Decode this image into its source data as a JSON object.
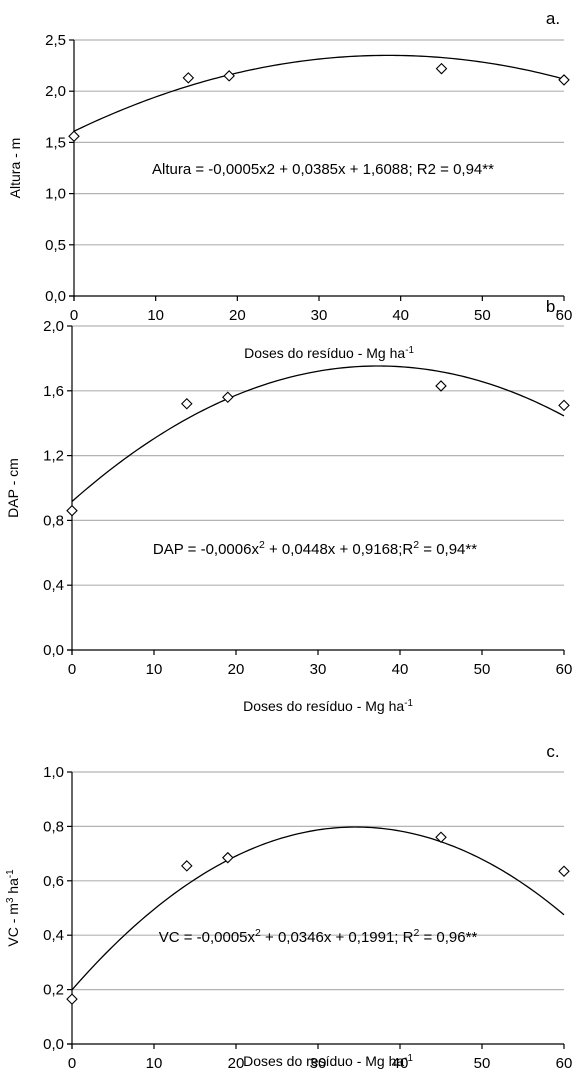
{
  "chart_data": [
    {
      "type": "scatter",
      "panel_label": "a.",
      "xlabel": "Doses do resíduo - Mg ha",
      "xlabel_sup": "-1",
      "ylabel": "Altura - m",
      "xlim": [
        0,
        60
      ],
      "ylim": [
        0,
        2.5
      ],
      "xticks": [
        0,
        10,
        20,
        30,
        40,
        50,
        60
      ],
      "yticks": [
        0,
        0.5,
        1.0,
        1.5,
        2.0,
        2.5
      ],
      "ytick_labels": [
        "0,0",
        "0,5",
        "1,0",
        "1,5",
        "2,0",
        "2,5"
      ],
      "grid": "horizontal",
      "marker": "open-diamond",
      "points": {
        "x": [
          0,
          14,
          19,
          45,
          60
        ],
        "y": [
          1.56,
          2.13,
          2.15,
          2.22,
          2.11
        ]
      },
      "trend": {
        "a": -0.0005,
        "b": 0.0385,
        "c": 1.6088
      },
      "equation_parts": [
        "Altura = -0,0005x2  + 0,0385x + 1,6088;  R2  = 0,94**"
      ]
    },
    {
      "type": "scatter",
      "panel_label": "b.",
      "xlabel": "Doses do resíduo - Mg ha",
      "xlabel_sup": "-1",
      "ylabel": "DAP - cm",
      "xlim": [
        0,
        60
      ],
      "ylim": [
        0,
        2.0
      ],
      "xticks": [
        0,
        10,
        20,
        30,
        40,
        50,
        60
      ],
      "yticks": [
        0,
        0.4,
        0.8,
        1.2,
        1.6,
        2.0
      ],
      "ytick_labels": [
        "0,0",
        "0,4",
        "0,8",
        "1,2",
        "1,6",
        "2,0"
      ],
      "grid": "horizontal",
      "marker": "open-diamond",
      "points": {
        "x": [
          0,
          14,
          19,
          45,
          60
        ],
        "y": [
          0.86,
          1.52,
          1.56,
          1.63,
          1.51
        ]
      },
      "trend": {
        "a": -0.0006,
        "b": 0.0448,
        "c": 0.9168
      },
      "equation_parts": [
        "DAP = -0,0006x",
        "2",
        " + 0,0448x + 0,9168;R",
        "2",
        " = 0,94**"
      ]
    },
    {
      "type": "scatter",
      "panel_label": "c.",
      "xlabel": "Doses do resíduo - Mg ha",
      "xlabel_sup": "-1",
      "ylabel_parts": [
        "VC - m",
        "3",
        " ha",
        "-1"
      ],
      "xlim": [
        0,
        60
      ],
      "ylim": [
        0,
        1.0
      ],
      "xticks": [
        0,
        10,
        20,
        30,
        40,
        50,
        60
      ],
      "yticks": [
        0,
        0.2,
        0.4,
        0.6,
        0.8,
        1.0
      ],
      "ytick_labels": [
        "0,0",
        "0,2",
        "0,4",
        "0,6",
        "0,8",
        "1,0"
      ],
      "grid": "horizontal",
      "marker": "open-diamond",
      "points": {
        "x": [
          0,
          14,
          19,
          45,
          60
        ],
        "y": [
          0.165,
          0.655,
          0.685,
          0.76,
          0.635
        ]
      },
      "trend": {
        "a": -0.0005,
        "b": 0.0346,
        "c": 0.1991
      },
      "equation_parts": [
        "VC = -0,0005x",
        "2",
        " + 0,0346x + 0,1991;  R",
        "2",
        " = 0,96**"
      ]
    }
  ],
  "colors": {
    "axis": "#000000",
    "grid": "#b3b3b3",
    "curve": "#000000",
    "marker_stroke": "#000000",
    "marker_fill": "#ffffff"
  }
}
